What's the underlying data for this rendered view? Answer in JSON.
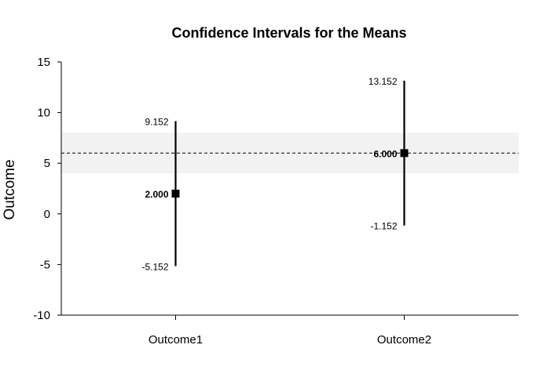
{
  "chart_data": {
    "type": "errorbar",
    "title": "Confidence Intervals for the Means",
    "xlabel": "",
    "ylabel": "Outcome",
    "ylim": [
      -10,
      15
    ],
    "yticks": [
      -10,
      -5,
      0,
      5,
      10,
      15
    ],
    "categories": [
      "Outcome1",
      "Outcome2"
    ],
    "points": [
      {
        "category": "Outcome1",
        "mean": 2.0,
        "lower": -5.152,
        "upper": 9.152,
        "mean_label": "2.000",
        "lower_label": "-5.152",
        "upper_label": "9.152"
      },
      {
        "category": "Outcome2",
        "mean": 6.0,
        "lower": -1.152,
        "upper": 13.152,
        "mean_label": "6.000",
        "lower_label": "-1.152",
        "upper_label": "13.152"
      }
    ],
    "reference_line": {
      "value": 6.0,
      "style": "dashed"
    },
    "reference_band": {
      "lower": 4.0,
      "upper": 8.0,
      "color": "#f2f2f2"
    },
    "grid": false,
    "legend": "none",
    "colors": {
      "marker": "#000000",
      "band": "#f2f2f2",
      "axis": "#000000"
    }
  }
}
